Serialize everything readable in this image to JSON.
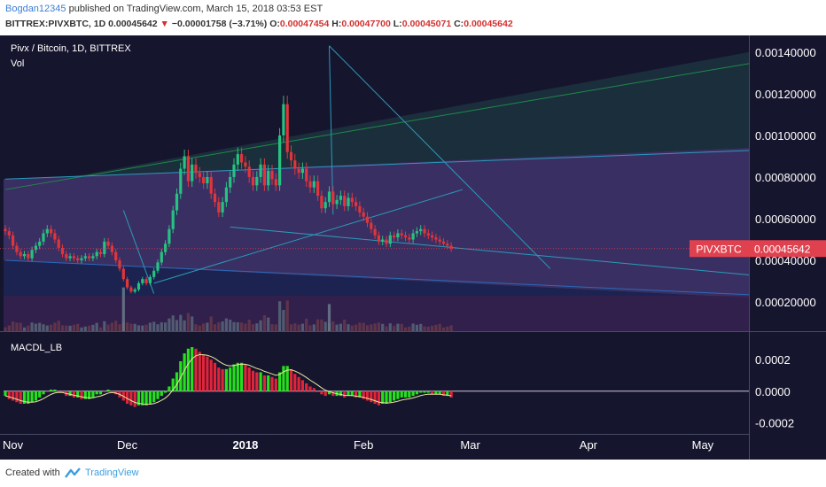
{
  "header": {
    "author": "Bogdan12345",
    "published_text": "published on TradingView.com, March 15, 2018 03:53 EST",
    "symbol": "BITTREX:PIVXBTC, 1D",
    "last": "0.00045642",
    "change": "−0.00001758 (−3.71%)",
    "o_label": "O:",
    "o_value": "0.00047454",
    "h_label": "H:",
    "h_value": "0.00047700",
    "l_label": "L:",
    "l_value": "0.00045071",
    "c_label": "C:",
    "c_value": "0.00045642"
  },
  "footer": {
    "created_with": "Created with",
    "brand": "TradingView"
  },
  "colors": {
    "background": "#16152e",
    "up": "#26c281",
    "down": "#e0353b",
    "macd_pos": "#26e01c",
    "macd_neg": "#e0243a",
    "price_label": "#e0414f"
  },
  "chart_data": [
    {
      "type": "candlestick",
      "title": "Pivx / Bitcoin, 1D, BITTREX",
      "subtitle": "Vol",
      "ylim": [
        6e-05,
        0.00148
      ],
      "yticks": [
        "0.00020000",
        "0.00040000",
        "0.00060000",
        "0.00080000",
        "0.00100000",
        "0.00120000",
        "0.00140000"
      ],
      "last_price_label": "PIVXBTC",
      "last_price_value": "0.00045642",
      "x_axis_labels": [
        "Nov",
        "Dec",
        "2018",
        "Feb",
        "Mar",
        "Apr",
        "May"
      ],
      "x_axis_dates": [
        "2017-11-01",
        "2017-12-01",
        "2018-01-01",
        "2018-02-01",
        "2018-03-01",
        "2018-04-01",
        "2018-05-01"
      ],
      "start_date": "2017-10-30",
      "closes": [
        0.00054,
        0.00052,
        0.00047,
        0.00044,
        0.00042,
        0.00043,
        0.00041,
        0.00045,
        0.00047,
        0.00049,
        0.00053,
        0.00055,
        0.00053,
        0.0005,
        0.00046,
        0.00043,
        0.00041,
        0.00042,
        0.00041,
        0.0004,
        0.00041,
        0.00042,
        0.00041,
        0.00042,
        0.00044,
        0.00043,
        0.00049,
        0.00047,
        0.00044,
        0.0004,
        0.00036,
        0.00031,
        0.00027,
        0.00025,
        0.00026,
        0.00029,
        0.00031,
        0.00029,
        0.00032,
        0.00035,
        0.00039,
        0.00044,
        0.00048,
        0.00055,
        0.00064,
        0.00072,
        0.00084,
        0.0009,
        0.00078,
        0.00086,
        0.00082,
        0.0008,
        0.00077,
        0.0008,
        0.00072,
        0.00068,
        0.00063,
        0.00068,
        0.00075,
        0.0008,
        0.00086,
        0.00091,
        0.00087,
        0.00085,
        0.0008,
        0.00076,
        0.0008,
        0.00086,
        0.00076,
        0.00083,
        0.00079,
        0.00076,
        0.001,
        0.00115,
        0.00092,
        0.00088,
        0.00084,
        0.00082,
        0.00084,
        0.00078,
        0.00075,
        0.00078,
        0.00071,
        0.00065,
        0.00068,
        0.00073,
        0.00067,
        0.00069,
        0.00071,
        0.00066,
        0.0007,
        0.00068,
        0.00066,
        0.00063,
        0.00061,
        0.00058,
        0.00055,
        0.00052,
        0.00049,
        0.0005,
        0.00048,
        0.00052,
        0.00051,
        0.00053,
        0.00052,
        0.00051,
        0.0005,
        0.00053,
        0.00054,
        0.00055,
        0.00053,
        0.00052,
        0.00051,
        0.0005,
        0.00049,
        0.00048,
        0.00047,
        0.00045642
      ],
      "volume_spikes": [
        {
          "date": "2017-11-30",
          "value": 0.00027
        },
        {
          "date": "2018-01-23",
          "value": 0.00019
        }
      ],
      "trendlines": [
        {
          "from": [
            "2017-10-30",
            0.00074
          ],
          "to": [
            "2018-05-31",
            0.0014
          ],
          "color": "#1e8a4a"
        },
        {
          "from": [
            "2017-10-30",
            0.00079
          ],
          "to": [
            "2018-05-31",
            0.00094
          ],
          "color": "#2a9ab8"
        },
        {
          "from": [
            "2017-10-30",
            0.0004
          ],
          "to": [
            "2018-05-31",
            0.00022
          ],
          "color": "#2a6ab8"
        },
        {
          "from": [
            "2017-12-08",
            0.00029
          ],
          "to": [
            "2018-02-27",
            0.00074
          ],
          "color": "#2a9ab8"
        },
        {
          "from": [
            "2017-12-28",
            0.00056
          ],
          "to": [
            "2018-05-31",
            0.0003
          ],
          "color": "#2a9ab8"
        },
        {
          "from": [
            "2017-11-30",
            0.00064
          ],
          "to": [
            "2017-12-08",
            0.00024
          ],
          "color": "#2a9ab8"
        },
        {
          "from": [
            "2018-01-23",
            0.00143
          ],
          "to": [
            "2018-03-22",
            0.00036
          ],
          "color": "#2a9ab8"
        },
        {
          "from": [
            "2018-01-23",
            0.00143
          ],
          "to": [
            "2018-01-24",
            0.00062
          ],
          "color": "#2a9ab8"
        }
      ]
    },
    {
      "type": "bar",
      "title": "MACDL_LB",
      "ylim": [
        -0.00026,
        0.00037
      ],
      "yticks": [
        "-0.0002",
        "0.0000",
        "0.0002"
      ],
      "macd": [
        -3e-05,
        -5e-05,
        -6e-05,
        -7e-05,
        -8e-05,
        -8e-05,
        -8e-05,
        -7e-05,
        -6e-05,
        -4e-05,
        -2e-05,
        0.0,
        1e-05,
        1e-05,
        0.0,
        -1e-05,
        -3e-05,
        -3e-05,
        -4e-05,
        -4e-05,
        -5e-05,
        -5e-05,
        -5e-05,
        -4e-05,
        -2e-05,
        -2e-05,
        0.0,
        1e-05,
        0.0,
        -2e-05,
        -4e-05,
        -6e-05,
        -8e-05,
        -9e-05,
        -0.0001,
        -9e-05,
        -9e-05,
        -9e-05,
        -8e-05,
        -7e-05,
        -5e-05,
        -3e-05,
        -1e-05,
        3e-05,
        8e-05,
        0.00012,
        0.00019,
        0.00024,
        0.00027,
        0.00028,
        0.00027,
        0.00025,
        0.00023,
        0.00022,
        0.0002,
        0.00018,
        0.00015,
        0.00014,
        0.00014,
        0.00015,
        0.00017,
        0.00018,
        0.00018,
        0.00017,
        0.00015,
        0.00013,
        0.00012,
        0.00012,
        0.0001,
        0.0001,
        9e-05,
        8e-05,
        0.00012,
        0.00016,
        0.00016,
        0.00014,
        0.00011,
        9e-05,
        7e-05,
        5e-05,
        3e-05,
        2e-05,
        0.0,
        -2e-05,
        -3e-05,
        -2e-05,
        -3e-05,
        -3e-05,
        -3e-05,
        -4e-05,
        -3e-05,
        -3e-05,
        -4e-05,
        -4e-05,
        -5e-05,
        -6e-05,
        -7e-05,
        -8e-05,
        -9e-05,
        -8e-05,
        -8e-05,
        -7e-05,
        -6e-05,
        -5e-05,
        -4e-05,
        -4e-05,
        -4e-05,
        -3e-05,
        -2e-05,
        -1e-05,
        -1e-05,
        -1e-05,
        -2e-05,
        -2e-05,
        -2e-05,
        -3e-05,
        -3e-05,
        -4e-05
      ]
    }
  ]
}
